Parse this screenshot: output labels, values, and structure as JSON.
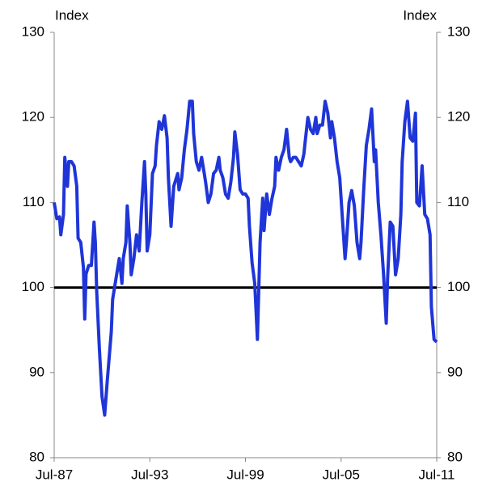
{
  "chart_data": {
    "type": "line",
    "ylabel": "Index",
    "y2label": "Index",
    "x": [
      "1987-07",
      "1987-09",
      "1987-11",
      "1987-12",
      "1988-02",
      "1988-03",
      "1988-05",
      "1988-06",
      "1988-08",
      "1988-10",
      "1988-12",
      "1989-01",
      "1989-03",
      "1989-05",
      "1989-06",
      "1989-07",
      "1989-09",
      "1989-11",
      "1990-01",
      "1990-02",
      "1990-03",
      "1990-05",
      "1990-07",
      "1990-09",
      "1990-11",
      "1991-02",
      "1991-03",
      "1991-06",
      "1991-08",
      "1991-10",
      "1991-11",
      "1992-01",
      "1992-02",
      "1992-04",
      "1992-05",
      "1992-07",
      "1992-09",
      "1992-11",
      "1993-01",
      "1993-03",
      "1993-04",
      "1993-05",
      "1993-07",
      "1993-09",
      "1993-11",
      "1993-12",
      "1994-02",
      "1994-04",
      "1994-06",
      "1994-08",
      "1994-09",
      "1994-11",
      "1995-01",
      "1995-04",
      "1995-05",
      "1995-07",
      "1995-09",
      "1995-11",
      "1996-01",
      "1996-03",
      "1996-04",
      "1996-06",
      "1996-08",
      "1996-10",
      "1996-12",
      "1997-01",
      "1997-03",
      "1997-05",
      "1997-07",
      "1997-09",
      "1997-11",
      "1997-12",
      "1998-02",
      "1998-04",
      "1998-06",
      "1998-08",
      "1998-10",
      "1998-11",
      "1999-01",
      "1999-03",
      "1999-05",
      "1999-07",
      "1999-09",
      "1999-10",
      "1999-12",
      "2000-02",
      "2000-04",
      "2000-06",
      "2000-08",
      "2000-09",
      "2000-11",
      "2001-01",
      "2001-03",
      "2001-05",
      "2001-06",
      "2001-08",
      "2001-10",
      "2001-12",
      "2002-02",
      "2002-04",
      "2002-05",
      "2002-07",
      "2002-09",
      "2002-11",
      "2003-01",
      "2003-03",
      "2003-04",
      "2003-06",
      "2003-08",
      "2003-10",
      "2003-12",
      "2004-01",
      "2004-03",
      "2004-05",
      "2004-07",
      "2004-09",
      "2004-11",
      "2004-12",
      "2005-02",
      "2005-04",
      "2005-06",
      "2005-08",
      "2005-10",
      "2005-11",
      "2006-01",
      "2006-03",
      "2006-05",
      "2006-07",
      "2006-09",
      "2006-10",
      "2006-12",
      "2007-02",
      "2007-04",
      "2007-06",
      "2007-08",
      "2007-09",
      "2007-11",
      "2008-01",
      "2008-03",
      "2008-05",
      "2008-06",
      "2008-08",
      "2008-10",
      "2008-12",
      "2009-02",
      "2009-04",
      "2009-05",
      "2009-07",
      "2009-09",
      "2009-11",
      "2010-01",
      "2010-03",
      "2010-04",
      "2010-06",
      "2010-08",
      "2010-10",
      "2010-12",
      "2011-02",
      "2011-03",
      "2011-05",
      "2011-07"
    ],
    "series": [
      {
        "color": "#1f35d8",
        "values": [
          110,
          108.1,
          108.3,
          106.2,
          108.6,
          115.3,
          111.9,
          114.8,
          114.8,
          114.3,
          111.9,
          105.8,
          105.3,
          102.4,
          96.3,
          101.6,
          102.6,
          102.6,
          107.7,
          105.3,
          99.6,
          92.9,
          87.2,
          85,
          89.1,
          94.8,
          98.6,
          101.5,
          103.4,
          100.5,
          103.4,
          105.3,
          109.6,
          105.3,
          101.5,
          103.4,
          106.2,
          104.3,
          110,
          114.8,
          111,
          104.3,
          106.2,
          113.4,
          114.3,
          116.7,
          119.5,
          118.6,
          120.2,
          117.6,
          112.9,
          107.2,
          111.9,
          113.4,
          111.5,
          112.9,
          116.2,
          118.6,
          121.9,
          121.9,
          118.1,
          114.8,
          113.8,
          115.3,
          113.4,
          112.4,
          110,
          111,
          113.4,
          113.8,
          115.3,
          113.8,
          112.9,
          111,
          110.5,
          112.4,
          115.3,
          118.3,
          115.7,
          111.5,
          111,
          111,
          110.5,
          107.2,
          102.9,
          100.5,
          93.9,
          105.3,
          110.5,
          106.7,
          111,
          108.6,
          110.5,
          111.9,
          115.3,
          113.8,
          115.3,
          116.2,
          118.6,
          115.3,
          114.8,
          115.3,
          115.3,
          114.8,
          114.3,
          115.7,
          117.2,
          120,
          118.6,
          118.1,
          120,
          118.1,
          119.1,
          119.1,
          121.9,
          120.5,
          117.6,
          119.5,
          117.6,
          114.8,
          112.9,
          108.1,
          103.4,
          105.3,
          110,
          111.4,
          109.6,
          105.3,
          103.4,
          105.3,
          111.4,
          116.7,
          118.6,
          121,
          114.8,
          116.2,
          110,
          106.2,
          101.5,
          95.8,
          101,
          107.7,
          107.2,
          101.5,
          103.4,
          108.6,
          114.8,
          119.5,
          121.9,
          117.6,
          117.2,
          120.5,
          110,
          109.6,
          114.3,
          108.6,
          108.1,
          106.2,
          97.7,
          93.9,
          93.6
        ]
      }
    ],
    "xlim": [
      "1987-07",
      "2011-07"
    ],
    "xticks": [
      {
        "value": "1987-07",
        "label": "Jul-87"
      },
      {
        "value": "1993-07",
        "label": "Jul-93"
      },
      {
        "value": "1999-07",
        "label": "Jul-99"
      },
      {
        "value": "2005-07",
        "label": "Jul-05"
      },
      {
        "value": "2011-07",
        "label": "Jul-11"
      }
    ],
    "ylim": [
      80,
      130
    ],
    "yticks": [
      80,
      90,
      100,
      110,
      120,
      130
    ],
    "y2lim": [
      80,
      130
    ],
    "y2ticks": [
      80,
      90,
      100,
      110,
      120,
      130
    ],
    "hline": 100
  }
}
